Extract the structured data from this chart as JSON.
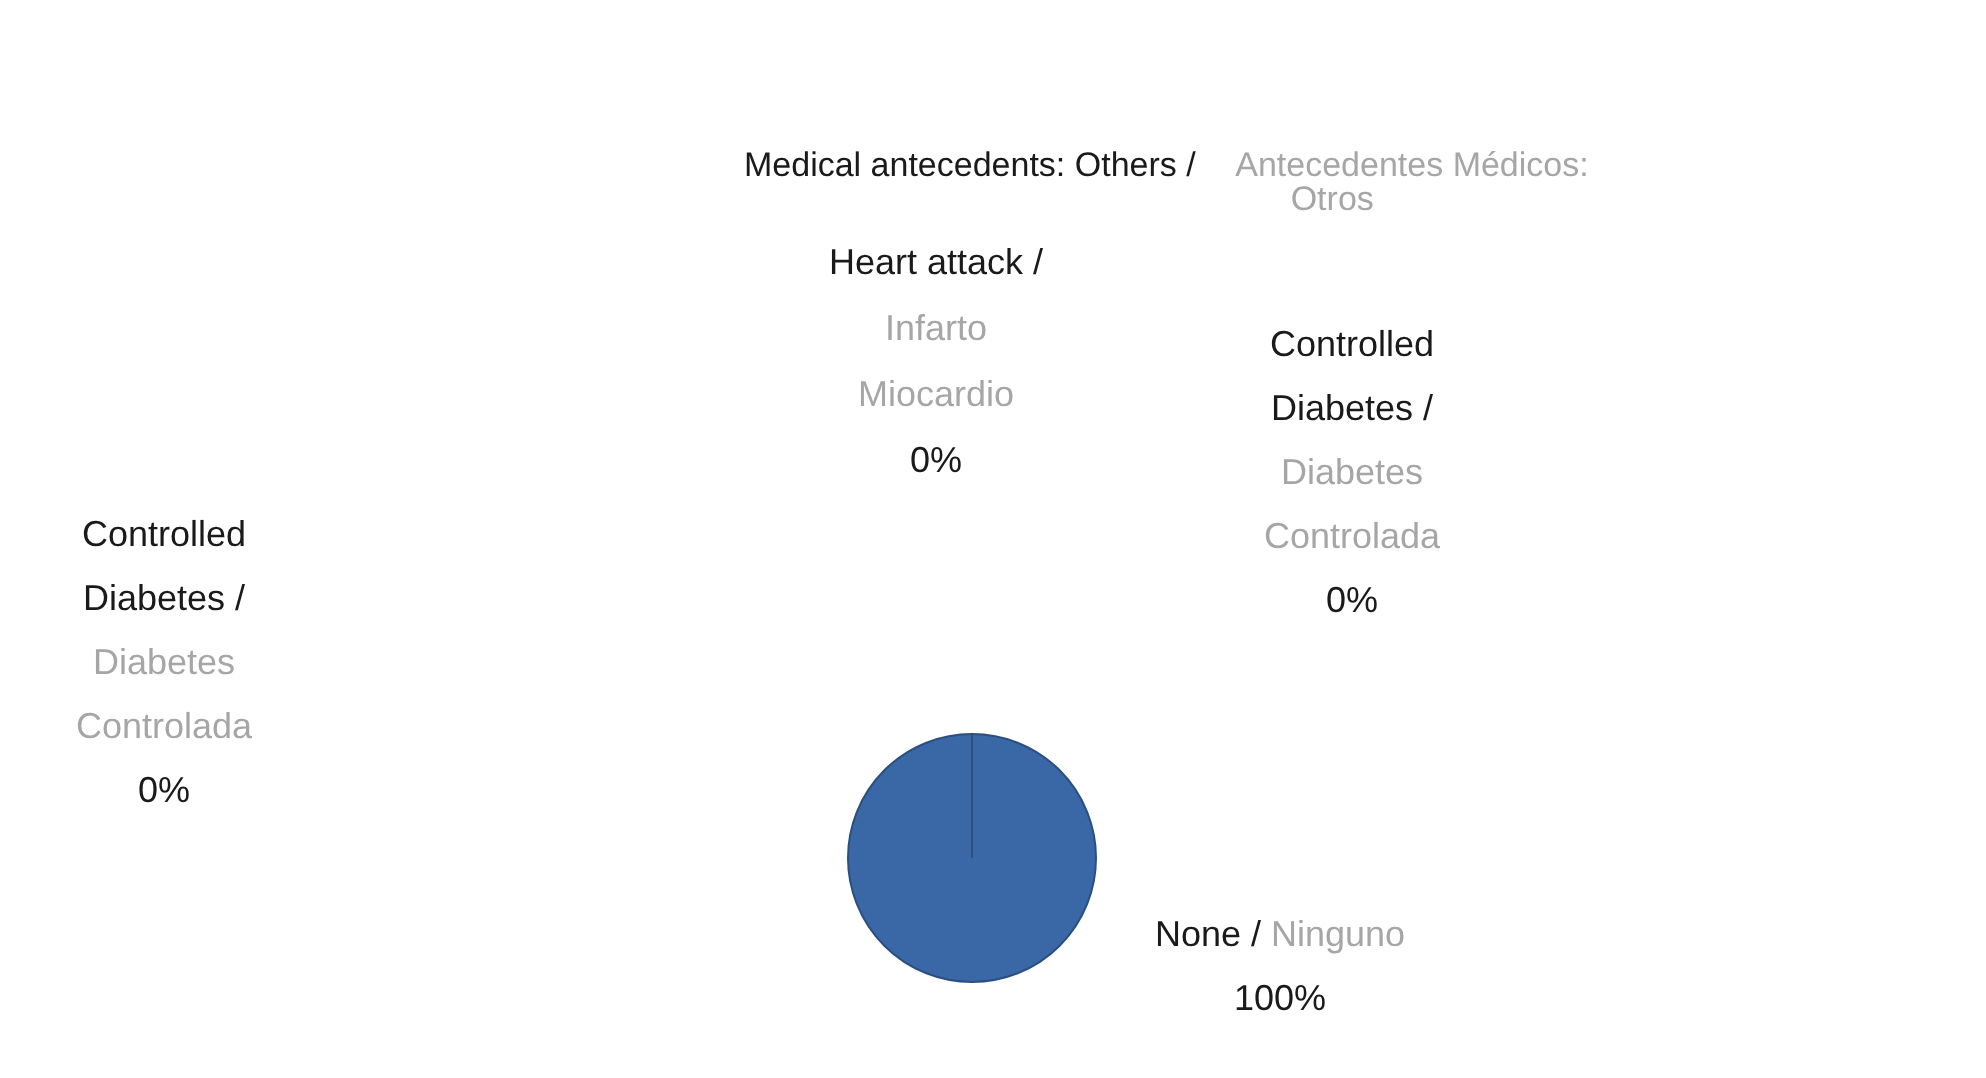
{
  "chart_data": {
    "type": "pie",
    "title": "Medical antecedents: Others / Antecedentes Médicos: Otros",
    "categories": [
      "Heart attack / Infarto Miocardio",
      "Controlled Diabetes / Diabetes Controlada",
      "None / Ninguno",
      "Controlled Diabetes / Diabetes Controlada"
    ],
    "values": [
      0,
      0,
      100,
      0
    ],
    "value_labels": [
      "0%",
      "0%",
      "100%",
      "0%"
    ],
    "colors": [
      "#c0504d",
      "#9bbb59",
      "#3a67a6",
      "#8064a2"
    ]
  }
}
